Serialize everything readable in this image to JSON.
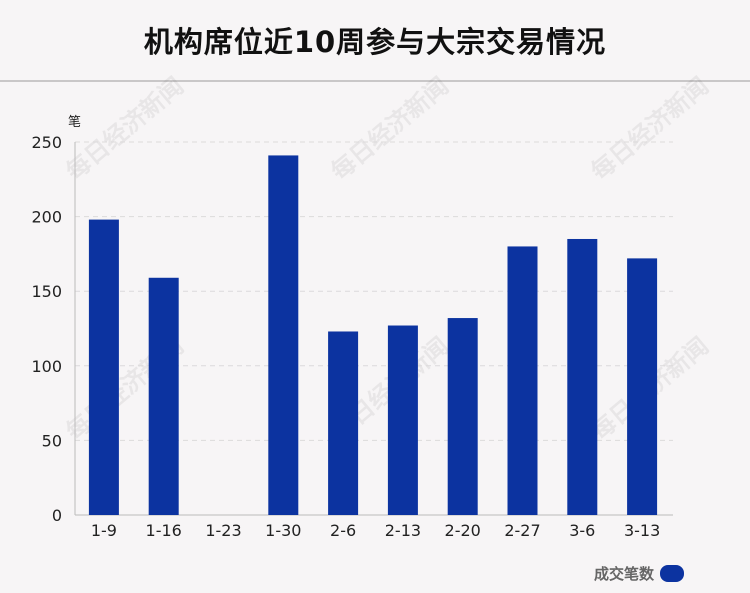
{
  "title": "机构席位近10周参与大宗交易情况",
  "watermark": "每日经济新闻",
  "legend": {
    "label": "成交笔数",
    "color": "#0c33a0"
  },
  "chart_data": {
    "type": "bar",
    "title": "机构席位近10周参与大宗交易情况",
    "ylabel": "笔",
    "xlabel": "",
    "ylim": [
      0,
      250
    ],
    "yticks": [
      0,
      50,
      100,
      150,
      200,
      250
    ],
    "grid": true,
    "legend_position": "bottom-right",
    "categories": [
      "1-9",
      "1-16",
      "1-23",
      "1-30",
      "2-6",
      "2-13",
      "2-20",
      "2-27",
      "3-6",
      "3-13"
    ],
    "series": [
      {
        "name": "成交笔数",
        "color": "#0c33a0",
        "values": [
          198,
          159,
          0,
          241,
          123,
          127,
          132,
          180,
          185,
          172
        ]
      }
    ]
  }
}
